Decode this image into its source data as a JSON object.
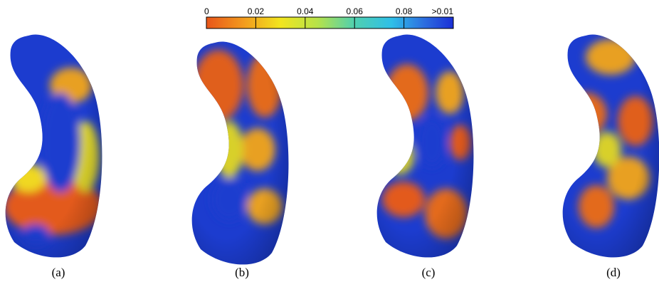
{
  "colorbar": {
    "ticks": [
      "0",
      "0.02",
      "0.04",
      "0.06",
      "0.08",
      ">0.01"
    ]
  },
  "panels": [
    {
      "label": "(a)"
    },
    {
      "label": "(b)"
    },
    {
      "label": "(c)"
    },
    {
      "label": "(d)"
    }
  ]
}
